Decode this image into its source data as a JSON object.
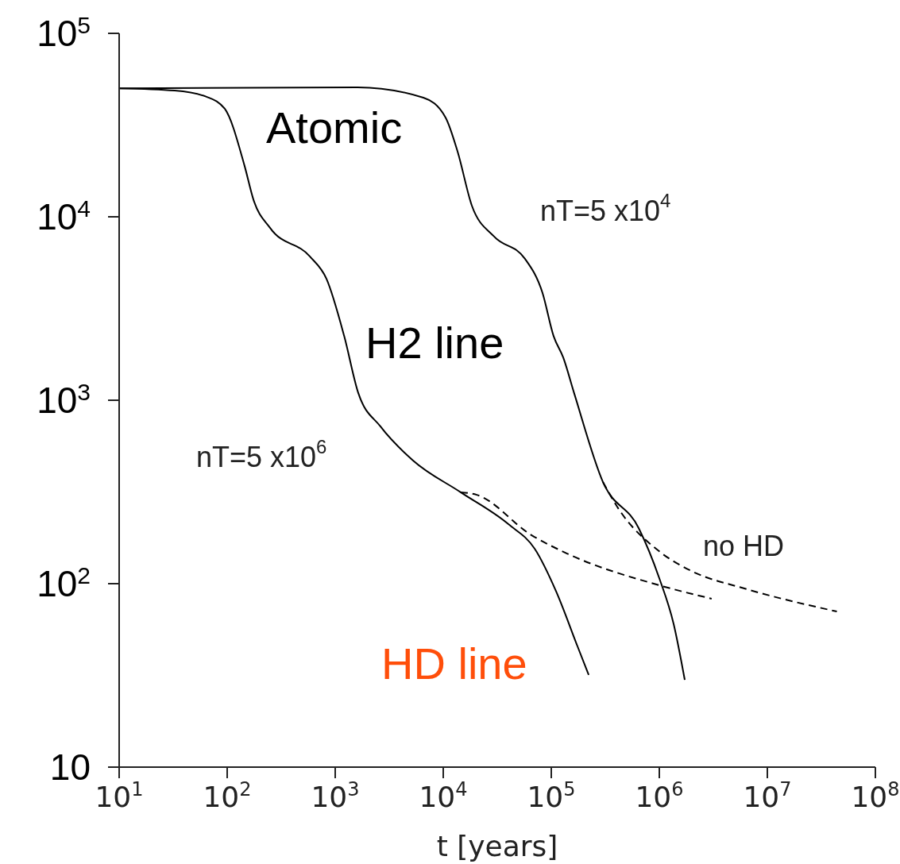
{
  "chart_data": {
    "type": "line",
    "xlabel": "t [years]",
    "log": "xy",
    "marker": "none",
    "xlim": [
      10,
      100000000
    ],
    "ylim": [
      10,
      100000
    ],
    "xticks": [
      {
        "value": 10,
        "label": "10$^{1}$"
      },
      {
        "value": 100,
        "label": "10$^{2}$"
      },
      {
        "value": 1000,
        "label": "10$^{3}$"
      },
      {
        "value": 10000,
        "label": "10$^{4}$"
      },
      {
        "value": 100000,
        "label": "10$^{5}$"
      },
      {
        "value": 1000000,
        "label": "10$^{6}$"
      },
      {
        "value": 10000000,
        "label": "10$^{7}$"
      },
      {
        "value": 100000000,
        "label": "10$^{8}$"
      }
    ],
    "yticks": [
      10,
      {
        "value": 100,
        "label": "10$^{2}$"
      },
      {
        "value": 1000,
        "label": "10$^{3}$"
      },
      {
        "value": 10000,
        "label": "10$^{4}$"
      },
      {
        "value": 100000,
        "label": "10$^{5}$"
      }
    ],
    "series": [
      {
        "color": "#000000",
        "line_style": "solid",
        "x": [
          10,
          32.7,
          64.4,
          95,
          145,
          175,
          250,
          582,
          830,
          1210,
          1630,
          2620,
          5260,
          14500,
          40100,
          70200,
          111000,
          175000,
          222000
        ],
        "values": [
          50200,
          48800,
          45100,
          38800,
          18900,
          12400,
          8690,
          6080,
          4590,
          2240,
          1100,
          720,
          469,
          315,
          211,
          155,
          90.6,
          45.5,
          31.8
        ]
      },
      {
        "color": "#000000",
        "line_style": "dashed",
        "x": [
          14500,
          20400,
          65500,
          140000,
          1000000,
          3050000
        ],
        "values": [
          315,
          305,
          184,
          146,
          98,
          82.8
        ]
      },
      {
        "color": "#000000",
        "line_style": "solid",
        "x": [
          10,
          1610,
          6550,
          10500,
          13600,
          18400,
          29600,
          57100,
          83000,
          105000,
          129000,
          163000,
          301000,
          644000,
          1000000,
          1360000,
          1720000
        ],
        "values": [
          50200,
          50800,
          44600,
          34800,
          22600,
          11500,
          7800,
          5900,
          3840,
          2240,
          1710,
          1090,
          358,
          201,
          107,
          60,
          29.9
        ]
      },
      {
        "color": "#000000",
        "line_style": "dashed",
        "x": [
          301000,
          407000,
          1000000,
          2000000,
          6200000,
          44000000
        ],
        "values": [
          358,
          263,
          150,
          117,
          94,
          70.5
        ]
      }
    ],
    "annotations": [
      "Atomic",
      "nT=5 x10$^{4}$",
      "H2 line",
      "nT=5 x10$^{6}$",
      "no HD",
      "HD line"
    ]
  }
}
